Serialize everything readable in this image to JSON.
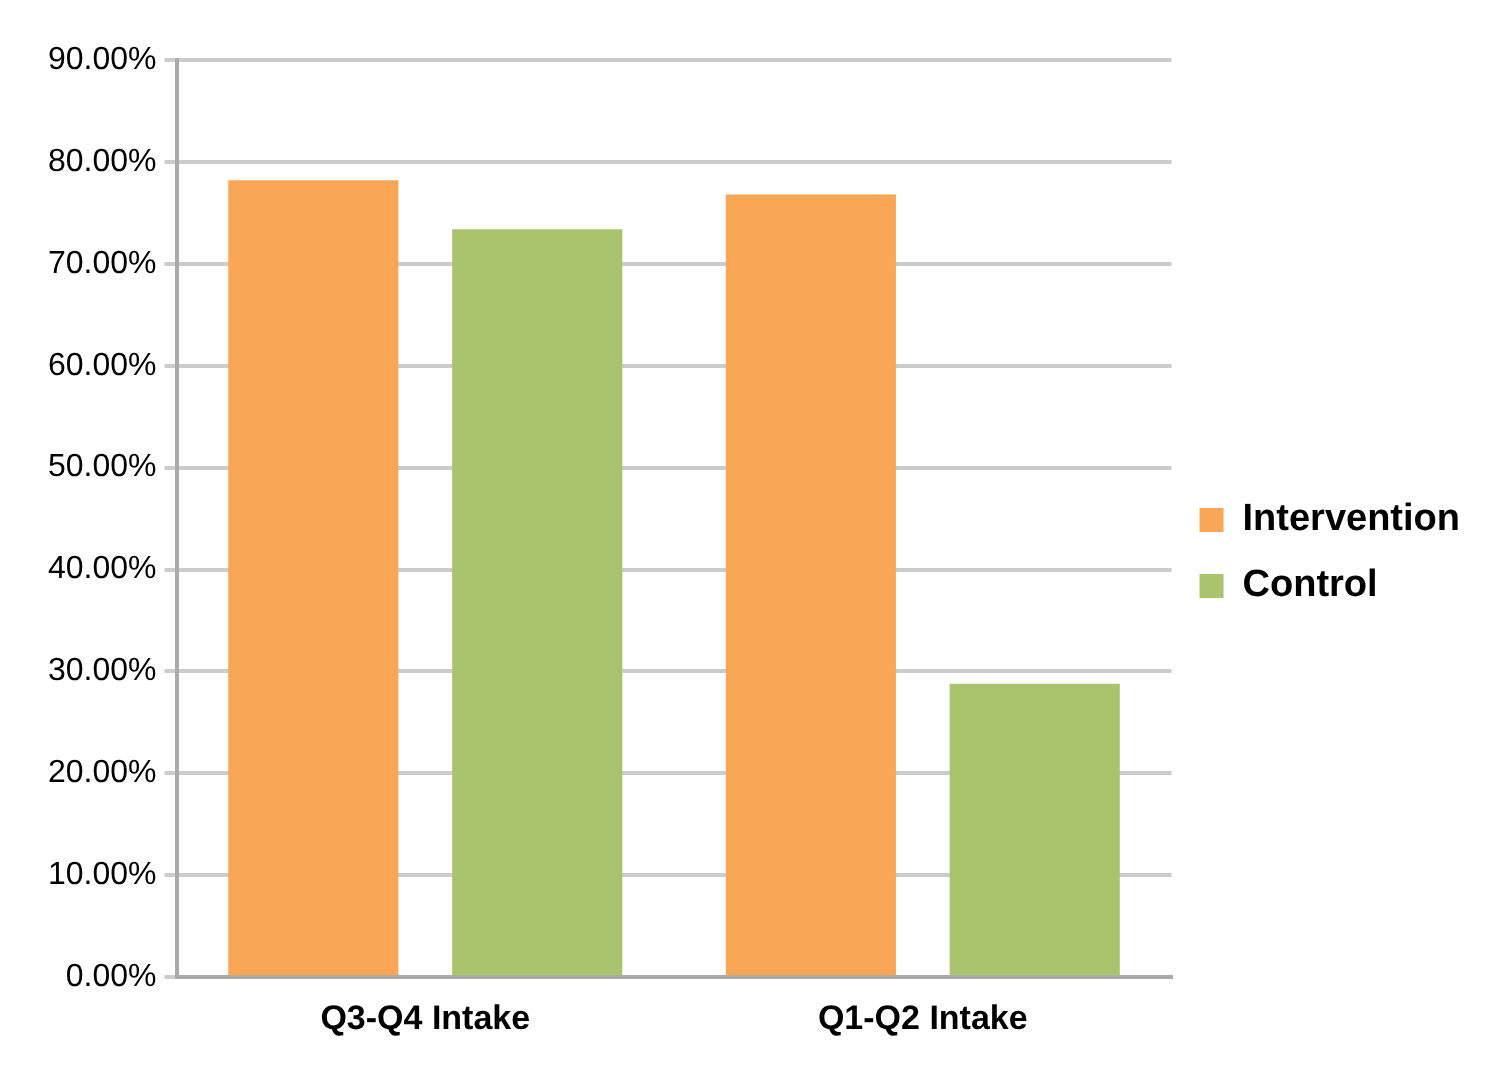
{
  "chart_data": {
    "type": "bar",
    "categories": [
      "Q3-Q4 Intake",
      "Q1-Q2 Intake"
    ],
    "series": [
      {
        "name": "Intervention",
        "color": "#f9a656",
        "values": [
          78.2,
          76.8
        ]
      },
      {
        "name": "Control",
        "color": "#a9c46c",
        "values": [
          73.4,
          28.8
        ]
      }
    ],
    "ylim": [
      0,
      90
    ],
    "yticks": [
      {
        "value": 0,
        "label": "0.00%"
      },
      {
        "value": 10,
        "label": "10.00%"
      },
      {
        "value": 20,
        "label": "20.00%"
      },
      {
        "value": 30,
        "label": "30.00%"
      },
      {
        "value": 40,
        "label": "40.00%"
      },
      {
        "value": 50,
        "label": "50.00%"
      },
      {
        "value": 60,
        "label": "60.00%"
      },
      {
        "value": 70,
        "label": "70.00%"
      },
      {
        "value": 80,
        "label": "80.00%"
      },
      {
        "value": 90,
        "label": "90.00%"
      }
    ],
    "grid": "y",
    "legend": "right"
  }
}
